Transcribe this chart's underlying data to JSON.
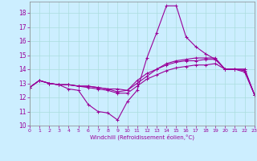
{
  "xlabel": "Windchill (Refroidissement éolien,°C)",
  "background_color": "#cceeff",
  "grid_color": "#aadddd",
  "line_color": "#990099",
  "spine_color": "#888888",
  "xmin": 0,
  "xmax": 23,
  "ymin": 10,
  "ymax": 18.8,
  "yticks": [
    10,
    11,
    12,
    13,
    14,
    15,
    16,
    17,
    18
  ],
  "xticks": [
    0,
    1,
    2,
    3,
    4,
    5,
    6,
    7,
    8,
    9,
    10,
    11,
    12,
    13,
    14,
    15,
    16,
    17,
    18,
    19,
    20,
    21,
    22,
    23
  ],
  "series": [
    [
      12.7,
      13.2,
      13.0,
      12.9,
      12.6,
      12.5,
      11.5,
      11.0,
      10.9,
      10.4,
      11.7,
      12.5,
      14.8,
      16.6,
      18.5,
      18.5,
      16.3,
      15.6,
      15.1,
      14.7,
      14.0,
      14.0,
      13.8,
      12.2
    ],
    [
      12.7,
      13.2,
      13.0,
      12.9,
      12.9,
      12.8,
      12.8,
      12.7,
      12.6,
      12.6,
      12.5,
      13.2,
      13.7,
      14.0,
      14.3,
      14.5,
      14.6,
      14.6,
      14.7,
      14.7,
      14.0,
      14.0,
      14.0,
      12.2
    ],
    [
      12.7,
      13.2,
      13.0,
      12.9,
      12.9,
      12.8,
      12.8,
      12.7,
      12.6,
      12.4,
      12.5,
      13.0,
      13.5,
      14.0,
      14.4,
      14.6,
      14.7,
      14.8,
      14.8,
      14.8,
      14.0,
      14.0,
      14.0,
      12.2
    ],
    [
      12.7,
      13.2,
      13.0,
      12.9,
      12.9,
      12.8,
      12.7,
      12.6,
      12.5,
      12.3,
      12.3,
      12.8,
      13.3,
      13.6,
      13.9,
      14.1,
      14.2,
      14.3,
      14.3,
      14.4,
      14.0,
      14.0,
      13.9,
      12.2
    ]
  ]
}
